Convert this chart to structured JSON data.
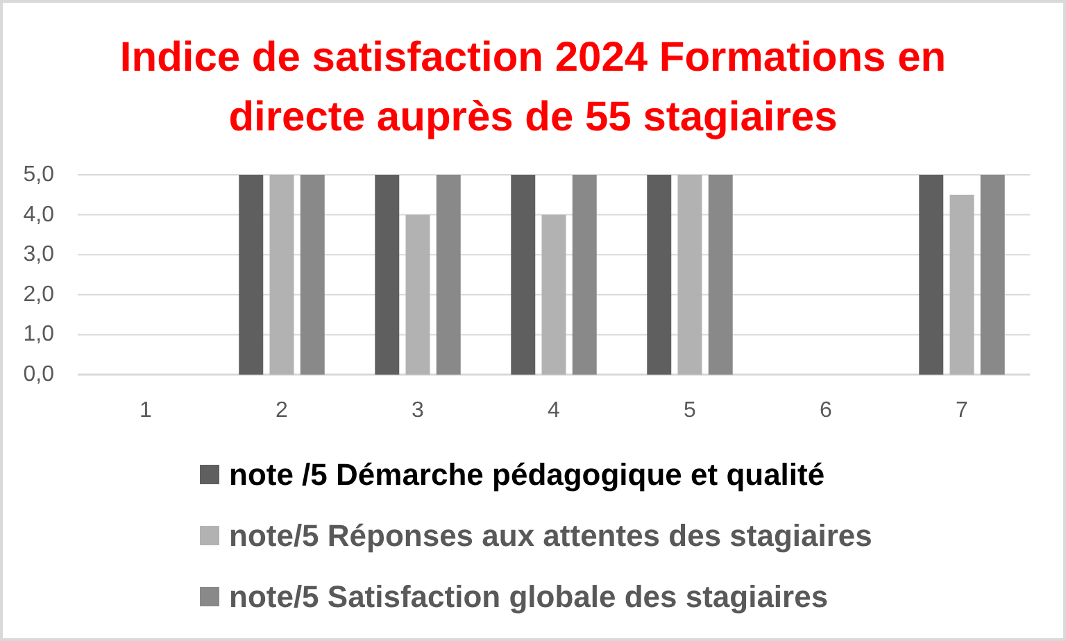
{
  "chart_data": {
    "type": "bar",
    "title": "Indice de satisfaction 2024 Formations en directe auprès de 55 stagiaires",
    "categories": [
      "1",
      "2",
      "3",
      "4",
      "5",
      "6",
      "7"
    ],
    "series": [
      {
        "name": "note /5 Démarche pédagogique et qualité",
        "color": "#5f5f5f",
        "values": [
          null,
          5,
          5,
          5,
          5,
          null,
          5
        ]
      },
      {
        "name": "note/5 Réponses aux attentes des stagiaires",
        "color": "#b2b2b2",
        "values": [
          null,
          5,
          4,
          4,
          5,
          null,
          4.5
        ]
      },
      {
        "name": "note/5 Satisfaction globale des stagiaires",
        "color": "#898989",
        "values": [
          null,
          5,
          5,
          5,
          5,
          null,
          5
        ]
      }
    ],
    "ylim": [
      0,
      5
    ],
    "yticks": [
      {
        "value": 0,
        "label": "0,0"
      },
      {
        "value": 1,
        "label": "1,0"
      },
      {
        "value": 2,
        "label": "2,0"
      },
      {
        "value": 3,
        "label": "3,0"
      },
      {
        "value": 4,
        "label": "4,0"
      },
      {
        "value": 5,
        "label": "5,0"
      }
    ],
    "grid": "y",
    "legend": "bottom"
  }
}
